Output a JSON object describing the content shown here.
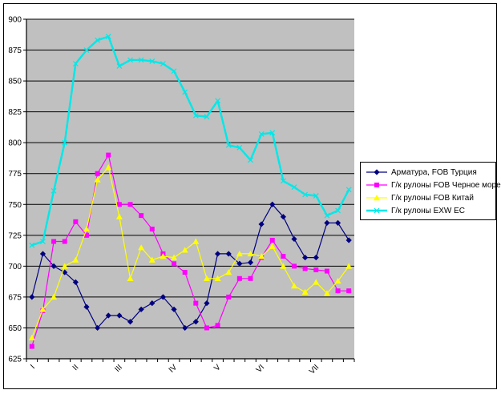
{
  "chart_data": {
    "type": "line",
    "title": "",
    "grid": true,
    "legend_position": "right",
    "background": "#FFFFFF",
    "plot_bg": "#C0C0C0",
    "grid_color": "#000000",
    "points_count": 30,
    "y_axis": {
      "min": 625,
      "max": 900,
      "step": 25,
      "tick_labels": [
        "625",
        "650",
        "675",
        "700",
        "725",
        "750",
        "775",
        "800",
        "825",
        "850",
        "875",
        "900"
      ]
    },
    "x_axis": {
      "labels": [
        {
          "text": "I",
          "point_index": 0
        },
        {
          "text": "II",
          "point_index": 4
        },
        {
          "text": "III",
          "point_index": 8
        },
        {
          "text": "IV",
          "point_index": 13
        },
        {
          "text": "V",
          "point_index": 17
        },
        {
          "text": "VI",
          "point_index": 21
        },
        {
          "text": "VII",
          "point_index": 26
        }
      ]
    },
    "series": [
      {
        "name": "Арматура, FOB Турция",
        "color": "#000080",
        "marker": "diamond",
        "line_width": 1.2,
        "values": [
          675,
          710,
          700,
          695,
          687,
          667,
          650,
          660,
          660,
          655,
          665,
          670,
          675,
          665,
          650,
          655,
          670,
          710,
          710,
          702,
          703,
          734,
          750,
          740,
          722,
          707,
          707,
          735,
          735,
          721
        ]
      },
      {
        "name": "Г/к рулоны FOB Черное море",
        "color": "#FF00FF",
        "marker": "square",
        "line_width": 1.2,
        "values": [
          635,
          664,
          720,
          720,
          736,
          725,
          775,
          790,
          750,
          750,
          741,
          730,
          710,
          702,
          695,
          670,
          650,
          652,
          675,
          690,
          690,
          707,
          721,
          708,
          700,
          698,
          697,
          696,
          680,
          680
        ]
      },
      {
        "name": "Г/к рулоны FOB Китай",
        "color": "#FFFF00",
        "marker": "triangle",
        "line_width": 1.2,
        "values": [
          642,
          665,
          675,
          700,
          705,
          730,
          770,
          780,
          740,
          690,
          715,
          705,
          708,
          707,
          713,
          720,
          690,
          690,
          695,
          710,
          710,
          708,
          716,
          700,
          684,
          679,
          687,
          678,
          688,
          700
        ]
      },
      {
        "name": "Г/к рулоны EXW ЕС",
        "color": "#00E8E8",
        "marker": "x",
        "line_width": 2.4,
        "values": [
          717,
          720,
          761,
          800,
          864,
          875,
          883,
          886,
          862,
          867,
          867,
          866,
          864,
          858,
          841,
          822,
          821,
          834,
          798,
          796,
          786,
          807,
          808,
          769,
          764,
          758,
          757,
          741,
          745,
          762
        ]
      }
    ]
  }
}
